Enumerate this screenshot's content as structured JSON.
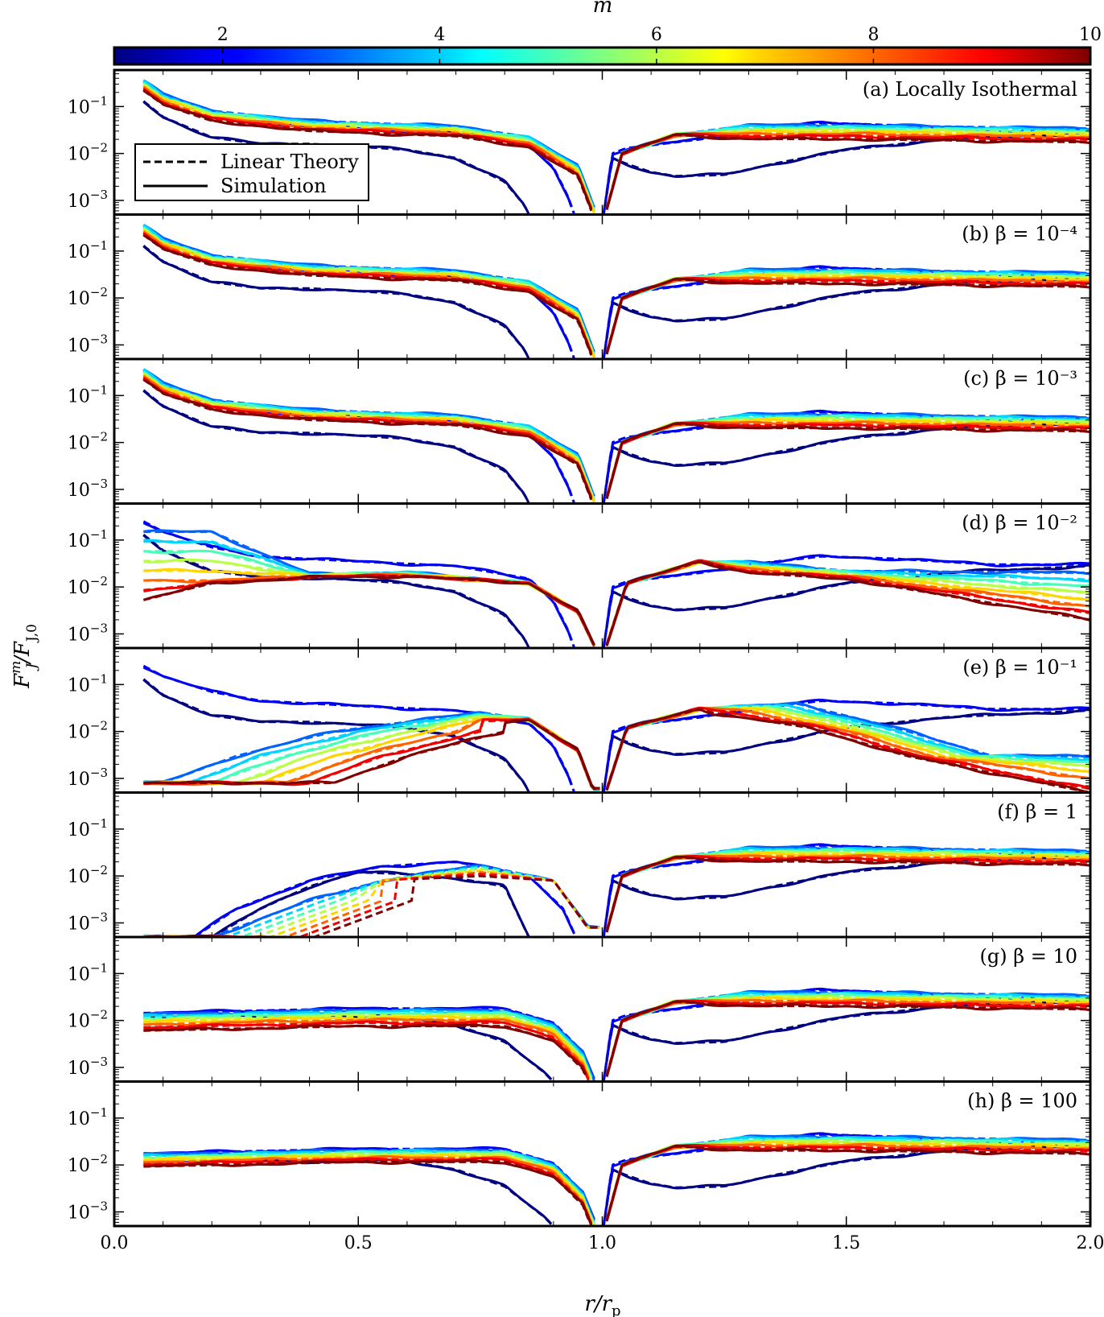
{
  "chart_data": {
    "type": "line",
    "xlabel": "r/r",
    "xlabel_sub": "p",
    "ylabel": "F^m_J / F_J,0",
    "ylabel_main": "F",
    "ylabel_sup": "m",
    "ylabel_sub": "J",
    "ylabel_denom": "/F",
    "ylabel_denom_sub": "J,0",
    "xlim": [
      0.0,
      2.0
    ],
    "x_ticks": [
      "0.0",
      "0.5",
      "1.0",
      "1.5",
      "2.0"
    ],
    "y_scale": "log",
    "ylim": [
      0.0005,
      0.6
    ],
    "y_ticks": [
      {
        "base": "10",
        "exp": "−1",
        "value": 0.1
      },
      {
        "base": "10",
        "exp": "−2",
        "value": 0.01
      },
      {
        "base": "10",
        "exp": "−3",
        "value": 0.001
      }
    ],
    "colorbar": {
      "label": "m",
      "range": [
        1,
        10
      ],
      "ticks": [
        "2",
        "4",
        "6",
        "8",
        "10"
      ],
      "colormap": "jet"
    },
    "legend": {
      "placement": "upper-left of panel (a)",
      "entries": [
        {
          "label": "Linear Theory",
          "style": "dashed"
        },
        {
          "label": "Simulation",
          "style": "solid"
        }
      ]
    },
    "m_values": [
      1,
      2,
      3,
      4,
      5,
      6,
      7,
      8,
      9,
      10
    ],
    "panels": [
      {
        "id": "a",
        "label": "(a) Locally Isothermal",
        "series": [
          {
            "m": 1,
            "x": [
              0.06,
              0.1,
              0.2,
              0.3,
              0.4,
              0.5,
              0.6,
              0.7,
              0.8,
              0.84,
              0.85
            ],
            "y": [
              0.13,
              0.06,
              0.022,
              0.016,
              0.016,
              0.014,
              0.012,
              0.008,
              0.0025,
              0.0008,
              0.0005
            ]
          },
          {
            "m": 2,
            "x": [
              0.06,
              0.1,
              0.2,
              0.3,
              0.5,
              0.7,
              0.85,
              0.9,
              0.93,
              0.94
            ],
            "y": [
              0.25,
              0.15,
              0.07,
              0.045,
              0.035,
              0.028,
              0.015,
              0.005,
              0.0012,
              0.0005
            ]
          }
        ]
      },
      {
        "id": "b",
        "label": "(b) β = 10⁻⁴"
      },
      {
        "id": "c",
        "label": "(c) β = 10⁻³"
      },
      {
        "id": "d",
        "label": "(d) β = 10⁻²"
      },
      {
        "id": "e",
        "label": "(e) β = 10⁻¹"
      },
      {
        "id": "f",
        "label": "(f) β = 1"
      },
      {
        "id": "g",
        "label": "(g) β = 10"
      },
      {
        "id": "h",
        "label": "(h) β = 100"
      }
    ]
  }
}
